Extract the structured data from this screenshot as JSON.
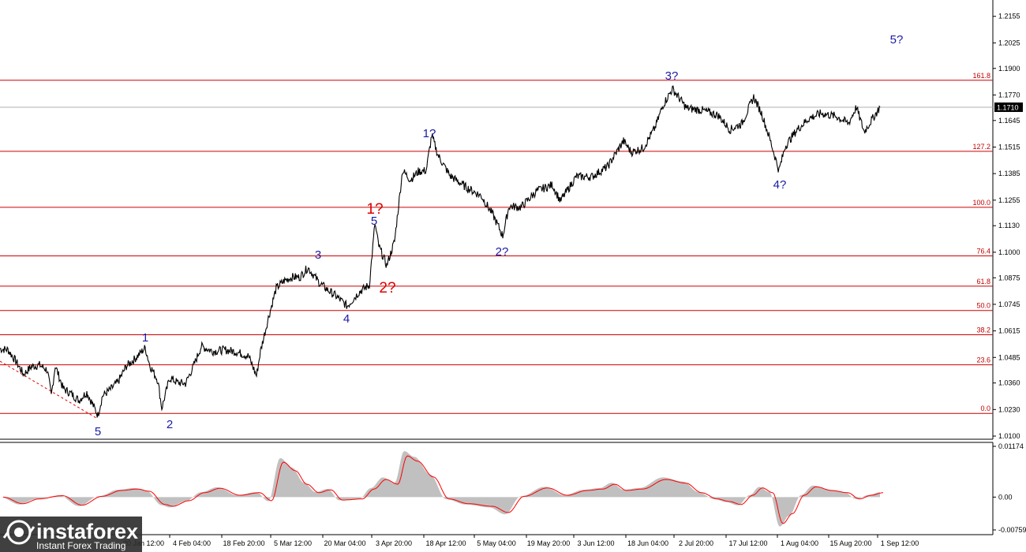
{
  "chart_data": [
    {
      "type": "line",
      "panel": "price",
      "ylim": [
        1.01,
        1.215
      ],
      "y_ticks": [
        "1.2155",
        "1.2025",
        "1.1900",
        "1.1770",
        "1.1645",
        "1.1515",
        "1.1385",
        "1.1255",
        "1.1130",
        "1.1000",
        "1.0875",
        "1.0745",
        "1.0615",
        "1.0485",
        "1.0360",
        "1.0230",
        "1.0100"
      ],
      "x_ticks": [
        "20 Jan 12:00",
        "4 Feb 04:00",
        "18 Feb 20:00",
        "5 Mar 12:00",
        "20 Mar 04:00",
        "3 Apr 20:00",
        "18 Apr 12:00",
        "5 May 04:00",
        "19 May 20:00",
        "3 Jun 12:00",
        "18 Jun 04:00",
        "2 Jul 20:00",
        "17 Jul 12:00",
        "1 Aug 04:00",
        "15 Aug 20:00",
        "1 Sep 12:00"
      ],
      "current_price": "1.1710",
      "x": [
        0,
        10,
        20,
        30,
        40,
        50,
        60,
        65,
        70,
        80,
        90,
        100,
        110,
        124,
        130,
        140,
        150,
        160,
        170,
        184,
        190,
        200,
        205,
        215,
        225,
        235,
        245,
        255,
        270,
        285,
        300,
        315,
        325,
        330,
        340,
        350,
        360,
        370,
        380,
        390,
        405,
        415,
        425,
        440,
        455,
        468,
        475,
        480,
        490,
        500,
        510,
        520,
        530,
        540,
        547,
        555,
        570,
        590,
        610,
        625,
        637,
        645,
        660,
        680,
        700,
        710,
        730,
        750,
        770,
        790,
        800,
        815,
        830,
        840,
        852,
        870,
        890,
        910,
        925,
        940,
        955,
        965,
        975,
        987,
        995,
        1010,
        1025,
        1040,
        1060,
        1075,
        1085,
        1095,
        1105,
        1115
      ],
      "values": [
        1.0527,
        1.0523,
        1.0467,
        1.0402,
        1.0441,
        1.0448,
        1.0423,
        1.0296,
        1.0445,
        1.0333,
        1.0308,
        1.0275,
        1.0315,
        1.0202,
        1.0298,
        1.0328,
        1.0368,
        1.0442,
        1.0475,
        1.0532,
        1.0445,
        1.0372,
        1.0236,
        1.0385,
        1.0362,
        1.0357,
        1.0441,
        1.0539,
        1.0515,
        1.0522,
        1.0512,
        1.0491,
        1.0395,
        1.0515,
        1.0678,
        1.0824,
        1.086,
        1.0878,
        1.0878,
        1.0925,
        1.0849,
        1.0816,
        1.0788,
        1.0736,
        1.0805,
        1.084,
        1.114,
        1.103,
        1.0935,
        1.1055,
        1.14,
        1.1355,
        1.1395,
        1.14,
        1.1573,
        1.1475,
        1.1375,
        1.132,
        1.1275,
        1.118,
        1.108,
        1.1225,
        1.122,
        1.13,
        1.133,
        1.125,
        1.137,
        1.137,
        1.142,
        1.1545,
        1.149,
        1.151,
        1.161,
        1.172,
        1.18,
        1.1705,
        1.1695,
        1.167,
        1.16,
        1.163,
        1.176,
        1.168,
        1.156,
        1.14,
        1.152,
        1.16,
        1.1655,
        1.168,
        1.1665,
        1.163,
        1.171,
        1.159,
        1.165,
        1.171
      ]
    },
    {
      "type": "area",
      "panel": "oscillator",
      "ylim": [
        -0.00759,
        0.01174
      ],
      "y_ticks": [
        "0.01174",
        "0.00",
        "-0.00759"
      ],
      "x": [
        0,
        25,
        45,
        75,
        100,
        125,
        150,
        170,
        185,
        205,
        215,
        235,
        255,
        275,
        300,
        325,
        340,
        355,
        370,
        385,
        400,
        415,
        430,
        455,
        470,
        485,
        500,
        512,
        525,
        545,
        565,
        590,
        620,
        640,
        660,
        690,
        715,
        740,
        760,
        775,
        790,
        810,
        840,
        865,
        885,
        905,
        920,
        935,
        950,
        962,
        975,
        988,
        1000,
        1015,
        1030,
        1050,
        1070,
        1085,
        1100,
        1115
      ],
      "values": [
        0,
        -0.0018,
        -0.0005,
        0.0004,
        -0.0022,
        0.0002,
        0.0018,
        0.0022,
        0.0016,
        -0.002,
        -0.0025,
        -0.001,
        0.0012,
        0.0024,
        0.0005,
        0.0012,
        -0.001,
        0.0095,
        0.0072,
        0.0035,
        0.0012,
        0.002,
        -0.0008,
        -0.0005,
        0.0022,
        0.0048,
        0.0035,
        0.0112,
        0.0098,
        0.0055,
        -0.0005,
        -0.0018,
        -0.0025,
        -0.0042,
        0.0002,
        0.0025,
        0.0005,
        0.0018,
        0.0022,
        0.0035,
        0.0018,
        0.0022,
        0.0048,
        0.0038,
        0.0012,
        -0.0005,
        -0.0012,
        -0.002,
        0.0005,
        0.0025,
        0.0012,
        -0.0072,
        -0.0045,
        0.0005,
        0.0028,
        0.0018,
        0.0012,
        -0.0005,
        0.0005,
        0.0012
      ]
    }
  ],
  "fibonacci_levels": [
    {
      "label": "161.8",
      "price": 1.1842
    },
    {
      "label": "127.2",
      "price": 1.1494
    },
    {
      "label": "100.0",
      "price": 1.122
    },
    {
      "label": "76.4",
      "price": 1.0982
    },
    {
      "label": "61.8",
      "price": 1.0834
    },
    {
      "label": "50.0",
      "price": 1.0715
    },
    {
      "label": "38.2",
      "price": 1.0596
    },
    {
      "label": "23.6",
      "price": 1.0449
    },
    {
      "label": "0.0",
      "price": 1.0211
    }
  ],
  "wave_labels": [
    {
      "text": "5",
      "style": "blue"
    },
    {
      "text": "1",
      "style": "blue"
    },
    {
      "text": "2",
      "style": "blue"
    },
    {
      "text": "3",
      "style": "blue"
    },
    {
      "text": "4",
      "style": "blue"
    },
    {
      "text": "5",
      "style": "blue"
    },
    {
      "text": "1?",
      "style": "red"
    },
    {
      "text": "2?",
      "style": "red"
    },
    {
      "text": "1?",
      "style": "blue"
    },
    {
      "text": "2?",
      "style": "blue"
    },
    {
      "text": "3?",
      "style": "blue"
    },
    {
      "text": "4?",
      "style": "blue"
    },
    {
      "text": "5?",
      "style": "blue"
    }
  ],
  "watermark": {
    "brand": "instaforex",
    "tagline": "Instant Forex Trading"
  },
  "colors": {
    "price_line": "#000000",
    "fib_line": "#cc0000",
    "fib_label": "#c00000",
    "wave_blue": "#1a1aa6",
    "wave_red": "#e00000",
    "osc_fill": "#c0c0c0",
    "osc_signal": "#ff0000",
    "current_price_box": "#000000"
  }
}
